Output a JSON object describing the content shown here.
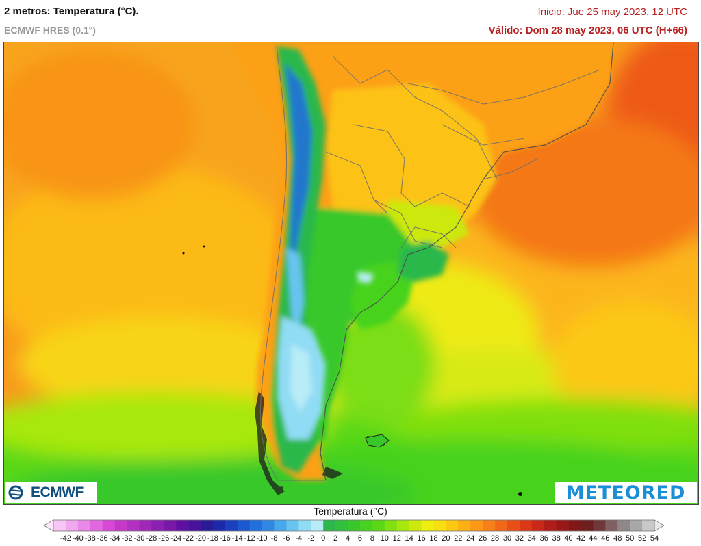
{
  "header": {
    "title": "2 metros: Temperatura (°C).",
    "model": "ECMWF HRES (0.1°)",
    "init": "Inicio: Jue 25 may 2023, 12 UTC",
    "valid": "Válido: Dom 28 may 2023, 06 UTC (H+66)"
  },
  "logos": {
    "left": "ECMWF",
    "right": "METEORED"
  },
  "colorbar": {
    "title": "Temperatura (°C)",
    "ticks": [
      "-42",
      "-40",
      "-38",
      "-36",
      "-34",
      "-32",
      "-30",
      "-28",
      "-26",
      "-24",
      "-22",
      "-20",
      "-18",
      "-16",
      "-14",
      "-12",
      "-10",
      "-8",
      "-6",
      "-4",
      "-2",
      "0",
      "2",
      "4",
      "6",
      "8",
      "10",
      "12",
      "14",
      "16",
      "18",
      "20",
      "22",
      "24",
      "26",
      "28",
      "30",
      "32",
      "34",
      "36",
      "38",
      "40",
      "42",
      "44",
      "46",
      "48",
      "50",
      "52",
      "54"
    ],
    "colors": [
      "#f6c6f4",
      "#f0a8ef",
      "#ea88e8",
      "#e268e0",
      "#d848d6",
      "#c838c8",
      "#b430c0",
      "#a028b8",
      "#8c20b0",
      "#7818a8",
      "#6010a0",
      "#48129a",
      "#2a1a98",
      "#1a2aa8",
      "#1a40c0",
      "#1a58d0",
      "#2270dc",
      "#3088e4",
      "#48a8ec",
      "#68c4f0",
      "#90dcf4",
      "#b8ecf6",
      "#2cb84c",
      "#30c03e",
      "#38c82c",
      "#46d21e",
      "#5ad816",
      "#80e010",
      "#a8e80c",
      "#cce80c",
      "#eeee10",
      "#f8e010",
      "#fcc812",
      "#fcb014",
      "#fc9816",
      "#f88018",
      "#f06818",
      "#e85018",
      "#dc3818",
      "#c82818",
      "#b01c18",
      "#981818",
      "#801818",
      "#6e2020",
      "#703838",
      "#806060",
      "#908888",
      "#a8a8a8",
      "#c8c8c8"
    ]
  },
  "colors": {
    "header_red": "#b52020",
    "ecmwf_blue": "#10507f",
    "meteored_blue": "#1a8fd6"
  },
  "icons": [
    "ecmwf-logo-icon",
    "colorbar-arrow-left-icon",
    "colorbar-arrow-right-icon"
  ]
}
